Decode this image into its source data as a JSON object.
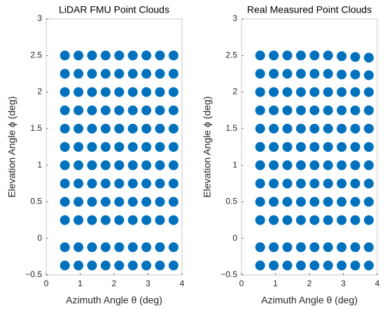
{
  "chart_data": [
    {
      "type": "scatter",
      "title": "LiDAR FMU Point Clouds",
      "xlabel": "Azimuth Angle θ (deg)",
      "ylabel": "Elevation Angle ϕ (deg)",
      "color": "#0072bd",
      "xlim": [
        0,
        4
      ],
      "ylim": [
        -0.5,
        3
      ],
      "xticks": [
        0,
        1,
        2,
        3,
        4
      ],
      "yticks": [
        {
          "value": -0.5,
          "label": "−0.5"
        },
        0,
        0.5,
        1,
        1.5,
        2,
        2.5,
        3
      ],
      "x": [
        0.55,
        0.95,
        1.35,
        1.75,
        2.15,
        2.55,
        2.95,
        3.35,
        3.75,
        0.55,
        0.95,
        1.35,
        1.75,
        2.15,
        2.55,
        2.95,
        3.35,
        3.75,
        0.55,
        0.95,
        1.35,
        1.75,
        2.15,
        2.55,
        2.95,
        3.35,
        3.75,
        0.55,
        0.95,
        1.35,
        1.75,
        2.15,
        2.55,
        2.95,
        3.35,
        3.75,
        0.55,
        0.95,
        1.35,
        1.75,
        2.15,
        2.55,
        2.95,
        3.35,
        3.75,
        0.55,
        0.95,
        1.35,
        1.75,
        2.15,
        2.55,
        2.95,
        3.35,
        3.75,
        0.55,
        0.95,
        1.35,
        1.75,
        2.15,
        2.55,
        2.95,
        3.35,
        3.75,
        0.55,
        0.95,
        1.35,
        1.75,
        2.15,
        2.55,
        2.95,
        3.35,
        3.75,
        0.55,
        0.95,
        1.35,
        1.75,
        2.15,
        2.55,
        2.95,
        3.35,
        3.75,
        0.55,
        0.95,
        1.35,
        1.75,
        2.15,
        2.55,
        2.95,
        3.35,
        3.75,
        0.55,
        0.95,
        1.35,
        1.75,
        2.15,
        2.55,
        2.95,
        3.35,
        3.75,
        0.55,
        0.95,
        1.35,
        1.75,
        2.15,
        2.55,
        2.95,
        3.35,
        3.75
      ],
      "y": [
        2.5,
        2.5,
        2.5,
        2.5,
        2.5,
        2.5,
        2.5,
        2.5,
        2.5,
        2.25,
        2.25,
        2.25,
        2.25,
        2.25,
        2.25,
        2.25,
        2.25,
        2.25,
        2,
        2,
        2,
        2,
        2,
        2,
        2,
        2,
        2,
        1.75,
        1.75,
        1.75,
        1.75,
        1.75,
        1.75,
        1.75,
        1.75,
        1.75,
        1.5,
        1.5,
        1.5,
        1.5,
        1.5,
        1.5,
        1.5,
        1.5,
        1.5,
        1.25,
        1.25,
        1.25,
        1.25,
        1.25,
        1.25,
        1.25,
        1.25,
        1.25,
        1,
        1,
        1,
        1,
        1,
        1,
        1,
        1,
        1,
        0.75,
        0.75,
        0.75,
        0.75,
        0.75,
        0.75,
        0.75,
        0.75,
        0.75,
        0.5,
        0.5,
        0.5,
        0.5,
        0.5,
        0.5,
        0.5,
        0.5,
        0.5,
        0.25,
        0.25,
        0.25,
        0.25,
        0.25,
        0.25,
        0.25,
        0.25,
        0.25,
        -0.12,
        -0.12,
        -0.12,
        -0.12,
        -0.12,
        -0.12,
        -0.12,
        -0.12,
        -0.12,
        -0.37,
        -0.37,
        -0.37,
        -0.37,
        -0.37,
        -0.37,
        -0.37,
        -0.37,
        -0.37
      ]
    },
    {
      "type": "scatter",
      "title": "Real Measured Point Clouds",
      "xlabel": "Azimuth Angle θ (deg)",
      "ylabel": "Elevation Angle ϕ (deg)",
      "color": "#0072bd",
      "xlim": [
        0,
        4
      ],
      "ylim": [
        -0.5,
        3
      ],
      "xticks": [
        0,
        1,
        2,
        3,
        4
      ],
      "yticks": [
        {
          "value": -0.5,
          "label": "−0.5"
        },
        0,
        0.5,
        1,
        1.5,
        2,
        2.5,
        3
      ],
      "x": [
        0.55,
        0.95,
        1.35,
        1.75,
        2.15,
        2.55,
        2.95,
        3.35,
        3.75,
        0.55,
        0.95,
        1.35,
        1.75,
        2.15,
        2.55,
        2.95,
        3.35,
        3.75,
        0.55,
        0.95,
        1.35,
        1.75,
        2.15,
        2.55,
        2.95,
        3.35,
        3.75,
        0.55,
        0.95,
        1.35,
        1.75,
        2.15,
        2.55,
        2.95,
        3.35,
        3.75,
        0.55,
        0.95,
        1.35,
        1.75,
        2.15,
        2.55,
        2.95,
        3.35,
        3.75,
        0.55,
        0.95,
        1.35,
        1.75,
        2.15,
        2.55,
        2.95,
        3.35,
        3.75,
        0.55,
        0.95,
        1.35,
        1.75,
        2.15,
        2.55,
        2.95,
        3.35,
        3.75,
        0.55,
        0.95,
        1.35,
        1.75,
        2.15,
        2.55,
        2.95,
        3.35,
        3.75,
        0.55,
        0.95,
        1.35,
        1.75,
        2.15,
        2.55,
        2.95,
        3.35,
        3.75,
        0.55,
        0.95,
        1.35,
        1.75,
        2.15,
        2.55,
        2.95,
        3.35,
        3.75,
        0.55,
        0.95,
        1.35,
        1.75,
        2.15,
        2.55,
        2.95,
        3.35,
        3.75,
        0.55,
        0.95,
        1.35,
        1.75,
        2.15,
        2.55,
        2.95,
        3.35,
        3.75
      ],
      "y": [
        2.5,
        2.5,
        2.5,
        2.5,
        2.5,
        2.5,
        2.49,
        2.48,
        2.47,
        2.25,
        2.25,
        2.25,
        2.25,
        2.25,
        2.25,
        2.24,
        2.24,
        2.23,
        2,
        2,
        2,
        2,
        2,
        2,
        2,
        2,
        2,
        1.75,
        1.75,
        1.75,
        1.75,
        1.75,
        1.75,
        1.75,
        1.75,
        1.75,
        1.5,
        1.5,
        1.5,
        1.5,
        1.5,
        1.5,
        1.5,
        1.5,
        1.5,
        1.25,
        1.25,
        1.25,
        1.25,
        1.25,
        1.25,
        1.25,
        1.25,
        1.25,
        1,
        1,
        1,
        1,
        1,
        1,
        1,
        1,
        1,
        0.75,
        0.75,
        0.75,
        0.75,
        0.75,
        0.75,
        0.75,
        0.75,
        0.75,
        0.5,
        0.5,
        0.5,
        0.5,
        0.5,
        0.5,
        0.5,
        0.5,
        0.5,
        0.25,
        0.25,
        0.25,
        0.25,
        0.25,
        0.25,
        0.25,
        0.25,
        0.25,
        -0.12,
        -0.12,
        -0.12,
        -0.12,
        -0.12,
        -0.12,
        -0.12,
        -0.12,
        -0.12,
        -0.37,
        -0.37,
        -0.37,
        -0.37,
        -0.37,
        -0.37,
        -0.37,
        -0.37,
        -0.37
      ]
    }
  ]
}
